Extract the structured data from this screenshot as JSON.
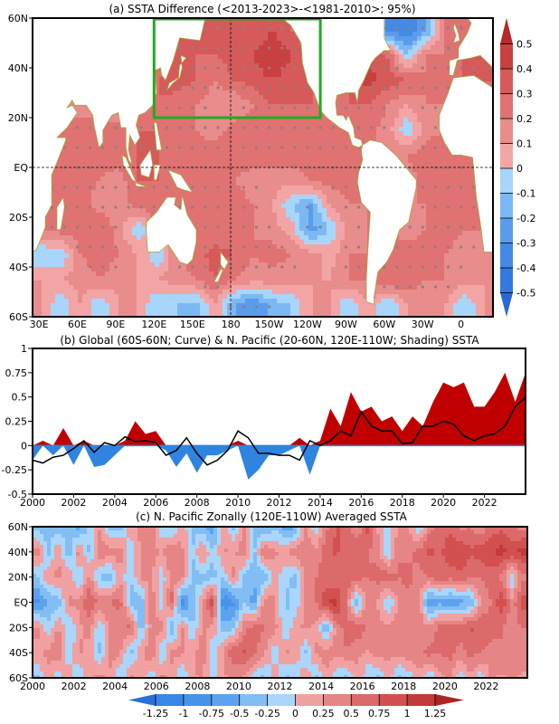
{
  "panel_a": {
    "title": "(a) SSTA Difference (<2013-2023>-<1981-2010>; 95%)",
    "lat_labels": [
      "60N",
      "40N",
      "20N",
      "EQ",
      "20S",
      "40S",
      "60S"
    ],
    "lon_labels": [
      "30E",
      "60E",
      "90E",
      "120E",
      "150E",
      "180",
      "150W",
      "120W",
      "90W",
      "60W",
      "30W",
      "0"
    ],
    "colorbar_labels": [
      "0.5",
      "0.4",
      "0.3",
      "0.2",
      "0.1",
      "0",
      "-0.1",
      "-0.2",
      "-0.3",
      "-0.4",
      "-0.5"
    ]
  },
  "panel_b": {
    "title": "(b) Global (60S-60N; Curve) & N. Pacific (20-60N, 120E-110W; Shading) SSTA",
    "y_labels": [
      "1",
      "0.75",
      "0.5",
      "0.25",
      "0",
      "-0.25",
      "-0.5"
    ],
    "x_labels": [
      "2000",
      "2002",
      "2004",
      "2006",
      "2008",
      "2010",
      "2012",
      "2014",
      "2016",
      "2018",
      "2020",
      "2022"
    ]
  },
  "panel_c": {
    "title": "(c) N. Pacific Zonally (120E-110W) Averaged SSTA",
    "lat_labels": [
      "60N",
      "40N",
      "20N",
      "EQ",
      "20S",
      "40S",
      "60S"
    ],
    "x_labels": [
      "2000",
      "2002",
      "2004",
      "2006",
      "2008",
      "2010",
      "2012",
      "2014",
      "2016",
      "2018",
      "2020",
      "2022"
    ],
    "colorbar_labels": [
      "-1.25",
      "-1",
      "-0.75",
      "-0.5",
      "-0.25",
      "0",
      "0.25",
      "0.5",
      "0.75",
      "1",
      "1.25"
    ]
  },
  "chart_data": [
    {
      "type": "heatmap",
      "title": "(a) SSTA Difference (<2013-2023>-<1981-2010>; 95%)",
      "lon_range": [
        25,
        385
      ],
      "lat_range": [
        -60,
        60
      ],
      "lon_centers": [
        32.5,
        47.5,
        62.5,
        77.5,
        92.5,
        107.5,
        122.5,
        137.5,
        152.5,
        167.5,
        182.5,
        197.5,
        212.5,
        227.5,
        242.5,
        257.5,
        272.5,
        287.5,
        302.5,
        317.5,
        332.5,
        347.5,
        362.5,
        377.5
      ],
      "lat_centers": [
        55,
        45,
        35,
        25,
        15,
        5,
        -5,
        -15,
        -25,
        -35,
        -45,
        -55
      ],
      "values": [
        [
          0.1,
          0.1,
          0.1,
          0.1,
          0.1,
          0.1,
          0.2,
          0.3,
          0.3,
          0.35,
          0.35,
          0.3,
          0.4,
          0.3,
          0.2,
          0.1,
          0.1,
          0.2,
          -0.3,
          -0.4,
          -0.2,
          0.2,
          0.3,
          0.2
        ],
        [
          0.3,
          0.1,
          0.1,
          0.1,
          0.1,
          0.1,
          0.2,
          0.35,
          0.3,
          0.3,
          0.35,
          0.4,
          0.5,
          0.4,
          0.3,
          0.1,
          0.1,
          0.4,
          0.3,
          -0.1,
          0.2,
          0.2,
          0.3,
          0.3
        ],
        [
          0.3,
          0.2,
          0.1,
          0.1,
          0.1,
          0.2,
          0.3,
          0.35,
          0.3,
          0.2,
          0.3,
          0.35,
          0.4,
          0.35,
          0.3,
          0.2,
          0.3,
          0.45,
          0.35,
          0.3,
          0.2,
          0.2,
          0.3,
          0.3
        ],
        [
          0.2,
          0.2,
          0.1,
          0.1,
          0.1,
          0.2,
          0.3,
          0.25,
          0.2,
          0.15,
          0.1,
          0.2,
          0.3,
          0.3,
          0.3,
          0.25,
          0.3,
          0.3,
          0.2,
          0.1,
          0.2,
          0.2,
          0.2,
          0.2
        ],
        [
          0.2,
          0.25,
          0.3,
          0.3,
          0.25,
          0.3,
          0.3,
          0.25,
          0.2,
          0.15,
          0.25,
          0.3,
          0.3,
          0.25,
          0.25,
          0.25,
          0.2,
          0.25,
          0.15,
          -0.1,
          0.15,
          0.2,
          0.2,
          0.2
        ],
        [
          0.2,
          0.2,
          0.25,
          0.25,
          0.25,
          0.3,
          0.3,
          0.3,
          0.25,
          0.25,
          0.3,
          0.25,
          0.25,
          0.25,
          0.25,
          0.25,
          0.2,
          0.2,
          0.2,
          0.2,
          0.25,
          0.3,
          0.25,
          0.2
        ],
        [
          0.2,
          0.25,
          0.25,
          0.2,
          0.15,
          0.3,
          0.3,
          0.25,
          0.2,
          0.25,
          0.2,
          0.15,
          0.15,
          0.15,
          0.2,
          0.25,
          0.25,
          0.2,
          0.2,
          0.15,
          0.25,
          0.3,
          0.25,
          0.2
        ],
        [
          0.2,
          0.25,
          0.25,
          0.15,
          0.15,
          0.25,
          0.3,
          0.25,
          0.2,
          0.2,
          0.25,
          0.2,
          0.1,
          -0.1,
          -0.2,
          0.1,
          0.2,
          0.2,
          0.2,
          0.2,
          0.2,
          0.25,
          0.25,
          0.2
        ],
        [
          0.2,
          0.25,
          0.25,
          0.3,
          0.15,
          -0.1,
          0.2,
          0.2,
          0.25,
          0.2,
          0.25,
          0.2,
          0.15,
          0.05,
          -0.25,
          -0.1,
          0.15,
          0.2,
          0.2,
          0.15,
          0.2,
          0.25,
          0.2,
          0.2
        ],
        [
          -0.1,
          -0.1,
          0.2,
          0.25,
          0.2,
          0.1,
          -0.1,
          0.2,
          0.25,
          0.35,
          0.3,
          0.2,
          0.25,
          0.2,
          0.15,
          0.05,
          0.2,
          0.2,
          0.3,
          0.25,
          0.25,
          0.2,
          0.15,
          0.15
        ],
        [
          0.1,
          0.1,
          0.15,
          0.2,
          0.15,
          0.1,
          0.1,
          0.15,
          0.2,
          0.3,
          0.2,
          0.15,
          0.15,
          0.15,
          0.1,
          0.1,
          0.2,
          0.2,
          0.3,
          0.3,
          0.2,
          0.2,
          0.15,
          0.1
        ],
        [
          0.1,
          -0.1,
          0.1,
          -0.1,
          0.1,
          0.1,
          -0.1,
          -0.1,
          -0.15,
          0.1,
          -0.2,
          -0.3,
          -0.15,
          -0.1,
          0.1,
          0.1,
          -0.1,
          0.1,
          -0.1,
          0.1,
          0.1,
          0.1,
          -0.1,
          0.1
        ]
      ],
      "levels": [
        -0.5,
        -0.4,
        -0.3,
        -0.2,
        -0.1,
        0,
        0.1,
        0.2,
        0.3,
        0.4,
        0.5
      ],
      "colors": [
        "#2a68d6",
        "#3479df",
        "#4589e6",
        "#5a9cec",
        "#7cb8f3",
        "#a8d5fa",
        "#f3a5a5",
        "#e98c8c",
        "#e07272",
        "#d65a5a",
        "#c94040",
        "#b52a2a"
      ],
      "box": {
        "lon": [
          120,
          250
        ],
        "lat": [
          20,
          60
        ],
        "color": "#22aa22"
      },
      "land_color": "#ffffff",
      "coast_color": "#a9a23c",
      "stipple_color": "#8c8080"
    },
    {
      "type": "area",
      "title": "(b) Global (60S-60N; Curve) & N. Pacific (20-60N, 120E-110W; Shading) SSTA",
      "xlim": [
        2000,
        2024
      ],
      "ylim": [
        -0.5,
        1
      ],
      "x": [
        2000,
        2000.5,
        2001,
        2001.5,
        2002,
        2002.5,
        2003,
        2003.5,
        2004,
        2004.5,
        2005,
        2005.5,
        2006,
        2006.5,
        2007,
        2007.5,
        2008,
        2008.5,
        2009,
        2009.5,
        2010,
        2010.5,
        2011,
        2011.5,
        2012,
        2012.5,
        2013,
        2013.5,
        2014,
        2014.5,
        2015,
        2015.5,
        2016,
        2016.5,
        2017,
        2017.5,
        2018,
        2018.5,
        2019,
        2019.5,
        2020,
        2020.5,
        2021,
        2021.5,
        2022,
        2022.5,
        2023,
        2023.5,
        2024
      ],
      "series": [
        {
          "role": "shading",
          "values": [
            -0.15,
            0.05,
            -0.1,
            0.18,
            -0.2,
            0.05,
            -0.22,
            -0.2,
            -0.1,
            0.05,
            0.25,
            0.12,
            0.15,
            -0.05,
            -0.22,
            -0.08,
            -0.28,
            -0.1,
            -0.1,
            -0.05,
            0.05,
            -0.35,
            -0.25,
            -0.1,
            -0.1,
            -0.05,
            0.08,
            -0.3,
            0.05,
            0.38,
            0.2,
            0.55,
            0.35,
            0.4,
            0.25,
            0.3,
            0.15,
            0.3,
            0.2,
            0.45,
            0.65,
            0.6,
            0.65,
            0.4,
            0.4,
            0.55,
            0.75,
            0.45,
            0.75
          ],
          "pos_color": "#c00000",
          "neg_color": "#2f84e0"
        },
        {
          "role": "curve",
          "values": [
            -0.15,
            -0.18,
            -0.12,
            -0.1,
            -0.03,
            0.05,
            -0.07,
            0.03,
            0.0,
            0.09,
            0.04,
            0.05,
            0.03,
            -0.1,
            -0.05,
            0.08,
            -0.08,
            -0.2,
            -0.15,
            -0.05,
            0.15,
            0.08,
            -0.08,
            -0.08,
            -0.1,
            -0.1,
            -0.15,
            0.05,
            0.0,
            0.05,
            0.15,
            0.1,
            0.35,
            0.2,
            0.15,
            0.15,
            0.02,
            0.03,
            0.2,
            0.2,
            0.25,
            0.22,
            0.1,
            0.05,
            0.1,
            0.12,
            0.2,
            0.4,
            0.5
          ],
          "color": "#000000"
        }
      ]
    },
    {
      "type": "heatmap",
      "title": "(c) N. Pacific Zonally (120E-110W) Averaged SSTA",
      "xlim": [
        2000,
        2024
      ],
      "ylim": [
        -60,
        60
      ],
      "lat_centers": [
        60,
        40,
        20,
        0,
        -20,
        -40,
        -60
      ],
      "time_step_years": 0.5,
      "values": [
        [
          -0.4,
          -0.3,
          -0.5,
          -0.3,
          -0.6,
          -0.2,
          0.2,
          -0.3,
          -0.4,
          0.2,
          0.3,
          0.4,
          -0.2,
          -0.3,
          0.2,
          -0.3,
          -0.5,
          -0.6,
          0.2,
          -0.3,
          0.3,
          -0.4,
          -0.6,
          -0.3,
          -0.7,
          -0.5,
          0.3,
          -0.2,
          0.4,
          0.8,
          0.6,
          0.3,
          0.9,
          0.2,
          -0.2,
          0.3,
          0.3,
          -0.3,
          0.4,
          0.6,
          0.7,
          0.4,
          0.5,
          0.3,
          0.6,
          0.7,
          0.5,
          0.4
        ],
        [
          0.4,
          -0.4,
          0.3,
          -0.5,
          0.4,
          -0.3,
          0.5,
          0.3,
          0.4,
          -0.2,
          0.3,
          0.4,
          0.2,
          0.5,
          0.3,
          -0.3,
          0.4,
          -0.3,
          0.3,
          0.2,
          0.4,
          -0.3,
          0.5,
          0.3,
          0.2,
          0.4,
          0.5,
          0.3,
          0.7,
          0.8,
          0.6,
          0.7,
          0.5,
          0.4,
          -0.3,
          0.5,
          0.4,
          0.6,
          0.8,
          0.7,
          0.9,
          1.0,
          0.8,
          0.9,
          1.0,
          1.1,
          0.9,
          1.1
        ],
        [
          -0.3,
          0.2,
          0.3,
          0.2,
          -0.3,
          0.3,
          -0.3,
          -0.4,
          0.2,
          -0.3,
          0.3,
          0.3,
          -0.2,
          0.4,
          0.3,
          -0.3,
          -0.4,
          -0.3,
          -0.2,
          0.3,
          -0.3,
          -0.5,
          -0.4,
          0.2,
          -0.2,
          -0.3,
          0.3,
          0.5,
          0.6,
          0.5,
          0.7,
          0.6,
          0.5,
          0.6,
          0.7,
          0.5,
          0.6,
          0.4,
          0.5,
          0.7,
          0.6,
          0.7,
          0.5,
          0.5,
          0.6,
          0.4,
          -0.2,
          0.4
        ],
        [
          -0.8,
          -0.5,
          -0.4,
          0.3,
          0.3,
          0.8,
          0.4,
          0.5,
          0.6,
          -0.3,
          -0.5,
          0.5,
          -0.2,
          0.6,
          -0.9,
          -0.4,
          0.3,
          0.9,
          -1.0,
          -0.8,
          -0.3,
          -0.6,
          0.4,
          0.3,
          -0.3,
          -0.2,
          0.3,
          0.5,
          1.0,
          1.1,
          0.4,
          -0.5,
          0.4,
          0.2,
          -0.3,
          0.3,
          0.4,
          0.3,
          -0.8,
          -0.6,
          -0.7,
          -0.6,
          -0.5,
          0.3,
          0.5,
          1.0,
          0.3,
          0.9
        ],
        [
          0.3,
          -0.2,
          0.3,
          -0.3,
          0.2,
          0.3,
          -0.2,
          0.3,
          0.4,
          0.6,
          -0.4,
          0.3,
          0.4,
          -0.5,
          0.3,
          -0.3,
          0.3,
          0.2,
          -0.4,
          -0.3,
          0.4,
          0.6,
          0.5,
          0.4,
          -0.3,
          0.2,
          0.3,
          0.2,
          -0.5,
          0.4,
          0.6,
          0.7,
          0.5,
          0.4,
          0.3,
          0.4,
          0.3,
          0.5,
          0.3,
          0.6,
          0.7,
          0.6,
          0.8,
          0.7,
          0.6,
          0.5,
          0.4,
          0.5
        ],
        [
          0.2,
          0.3,
          0.5,
          -0.3,
          0.3,
          0.2,
          -0.3,
          0.4,
          0.3,
          -0.4,
          0.2,
          0.5,
          -0.3,
          0.3,
          0.3,
          0.2,
          0.4,
          -0.3,
          0.3,
          0.7,
          0.8,
          0.6,
          0.3,
          -0.2,
          0.3,
          0.2,
          -0.3,
          0.3,
          0.4,
          0.3,
          0.5,
          0.3,
          0.2,
          0.4,
          0.3,
          0.3,
          0.5,
          0.4,
          0.6,
          0.5,
          0.6,
          0.4,
          0.6,
          0.5,
          0.4,
          0.5,
          0.3,
          0.4
        ],
        [
          -0.3,
          0.2,
          -0.2,
          0.3,
          -0.3,
          0.2,
          0.3,
          0.2,
          -0.3,
          0.3,
          0.2,
          -0.2,
          0.3,
          0.2,
          -0.3,
          0.2,
          0.3,
          -0.2,
          0.2,
          0.3,
          0.2,
          -0.2,
          -0.3,
          0.2,
          -0.3,
          -0.2,
          0.2,
          -0.3,
          0.2,
          -0.2,
          -0.3,
          0.2,
          -0.2,
          -0.3,
          0.2,
          -0.3,
          -0.2,
          0.2,
          -0.3,
          0.2,
          0.3,
          -0.2,
          0.2,
          -0.2,
          0.3,
          0.2,
          0.3,
          0.2
        ]
      ],
      "levels": [
        -1.25,
        -1,
        -0.75,
        -0.5,
        -0.25,
        0,
        0.25,
        0.5,
        0.75,
        1,
        1.25
      ],
      "colors": [
        "#2a70dc",
        "#3a86e6",
        "#4893ea",
        "#5ca2ee",
        "#82bdf4",
        "#a9d6fa",
        "#f1a1a1",
        "#e68585",
        "#dc6a6a",
        "#d25050",
        "#c43a3a",
        "#ae2424"
      ]
    }
  ]
}
